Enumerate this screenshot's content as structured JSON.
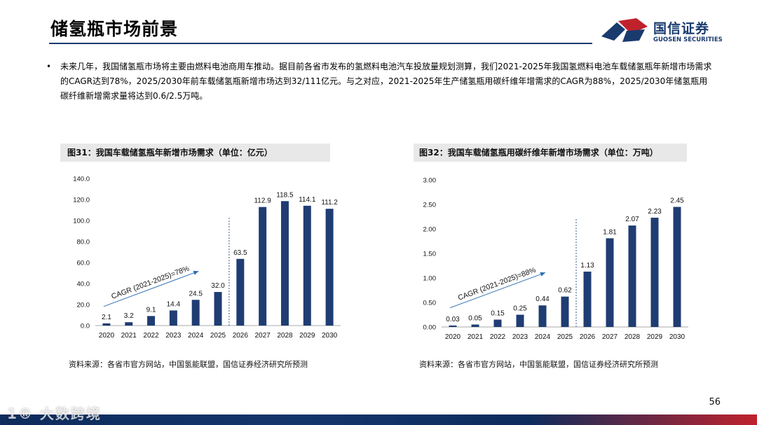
{
  "header": {
    "title": "储氢瓶市场前景"
  },
  "logo": {
    "cn": "国信证券",
    "en": "GUOSEN SECURITIES"
  },
  "bullet": {
    "dot": "•",
    "text": "未来几年，我国储氢瓶市场将主要由燃料电池商用车推动。据目前各省市发布的氢燃料电池汽车投放量规划测算，我们2021-2025年我国氢燃料电池车载储氢瓶年新增市场需求的CAGR达到78%，2025/2030年前车载储氢瓶新增市场达到32/111亿元。与之对应，2021-2025年生产储氢瓶用碳纤维年增需求的CAGR为88%，2025/2030年储氢瓶用碳纤维新增需求量将达到0.6/2.5万吨。"
  },
  "figures": [
    {
      "title": "图31：我国车载储氢瓶年新增市场需求（单位：亿元）",
      "source": "资料来源：各省市官方网站，中国氢能联盟，国信证券经济研究所预测"
    },
    {
      "title": "图32：我国车载储氢瓶用碳纤维年新增市场需求（单位：万吨）",
      "source": "资料来源：各省市官方网站，中国氢能联盟，国信证券经济研究所预测"
    }
  ],
  "page_number": "56",
  "watermark": "1® 大数跨境",
  "colors": {
    "bar": "#1f3d73",
    "accent_red": "#c0222d",
    "brand_navy": "#1a3b6e"
  },
  "chart_data": [
    {
      "type": "bar",
      "categories": [
        "2020",
        "2021",
        "2022",
        "2023",
        "2024",
        "2025",
        "2026",
        "2027",
        "2028",
        "2029",
        "2030"
      ],
      "values": [
        2.1,
        3.2,
        9.1,
        14.4,
        24.5,
        32.0,
        63.5,
        112.9,
        118.5,
        114.1,
        111.2
      ],
      "labels": [
        "2.1",
        "3.2",
        "9.1",
        "14.4",
        "24.5",
        "32.0",
        "63.5",
        "112.9",
        "118.5",
        "114.1",
        "111.2"
      ],
      "ylim": [
        0,
        140
      ],
      "yticks": [
        "0.0",
        "20.0",
        "40.0",
        "60.0",
        "80.0",
        "100.0",
        "120.0",
        "140.0"
      ],
      "annotation": "CAGR (2021-2025)=78%",
      "divider_after": "2025",
      "grid": false
    },
    {
      "type": "bar",
      "categories": [
        "2020",
        "2021",
        "2022",
        "2023",
        "2024",
        "2025",
        "2026",
        "2027",
        "2028",
        "2029",
        "2030"
      ],
      "values": [
        0.03,
        0.05,
        0.15,
        0.25,
        0.44,
        0.62,
        1.13,
        1.81,
        2.07,
        2.23,
        2.45
      ],
      "labels": [
        "0.03",
        "0.05",
        "0.15",
        "0.25",
        "0.44",
        "0.62",
        "1.13",
        "1.81",
        "2.07",
        "2.23",
        "2.45"
      ],
      "ylim": [
        0,
        3
      ],
      "yticks": [
        "0.00",
        "0.50",
        "1.00",
        "1.50",
        "2.00",
        "2.50",
        "3.00"
      ],
      "annotation": "CAGR (2021-2025)=88%",
      "divider_after": "2025",
      "grid": false
    }
  ]
}
